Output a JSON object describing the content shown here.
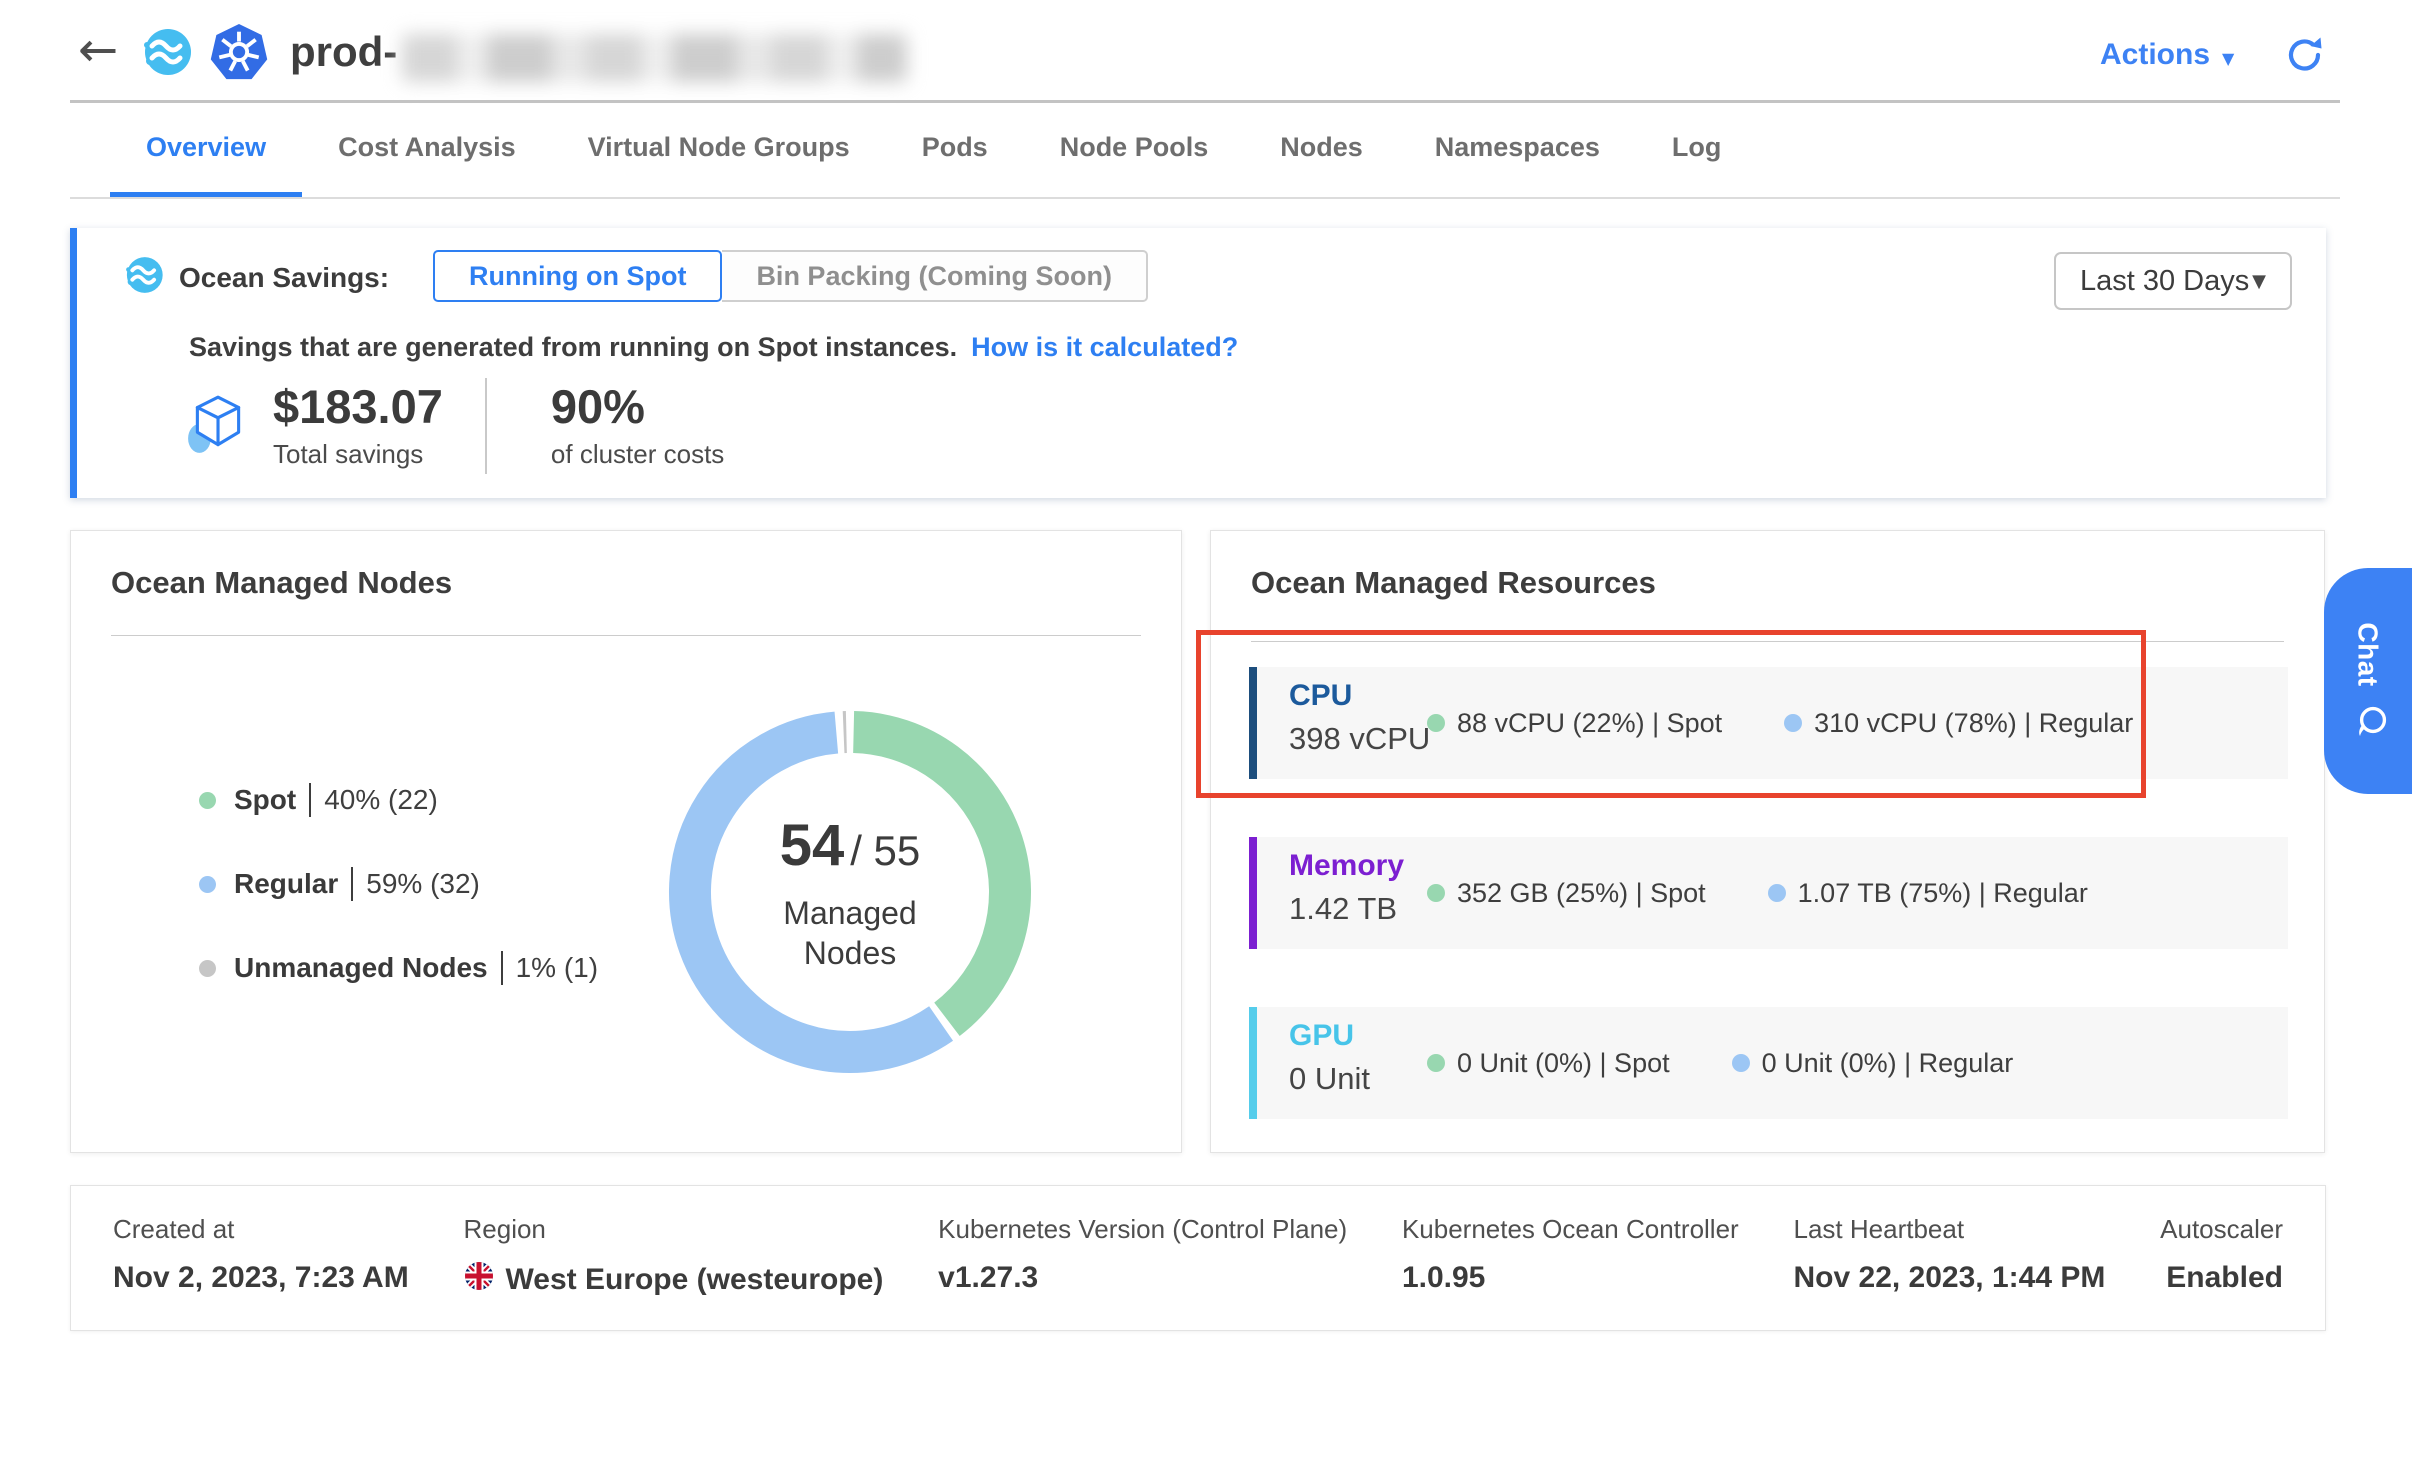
{
  "header": {
    "title_prefix": "prod-",
    "actions_label": "Actions"
  },
  "icons": {
    "back_arrow": "←",
    "caret_down": "▼"
  },
  "colors": {
    "accent_blue": "#2e7ff2",
    "spot_green": "#98d7b0",
    "regular_blue": "#9cc6f4",
    "unmanaged_grey": "#c6c6c6",
    "annotation_red": "#e8432d"
  },
  "tabs": [
    {
      "label": "Overview",
      "active": true
    },
    {
      "label": "Cost Analysis",
      "active": false
    },
    {
      "label": "Virtual Node Groups",
      "active": false
    },
    {
      "label": "Pods",
      "active": false
    },
    {
      "label": "Node Pools",
      "active": false
    },
    {
      "label": "Nodes",
      "active": false
    },
    {
      "label": "Namespaces",
      "active": false
    },
    {
      "label": "Log",
      "active": false
    }
  ],
  "savings_banner": {
    "label": "Ocean Savings:",
    "toggle_on": "Running on Spot",
    "toggle_off": "Bin Packing (Coming Soon)",
    "period_selector": "Last 30 Days",
    "description": "Savings that are generated from running on Spot instances.",
    "link": "How is it calculated?",
    "total_savings": "$183.07",
    "total_savings_label": "Total savings",
    "percent": "90%",
    "percent_label": "of cluster costs"
  },
  "managed_nodes": {
    "title": "Ocean Managed Nodes",
    "legend": [
      {
        "label": "Spot",
        "value": "40% (22)",
        "color": "#98d7b0"
      },
      {
        "label": "Regular",
        "value": "59% (32)",
        "color": "#9cc6f4"
      },
      {
        "label": "Unmanaged Nodes",
        "value": "1% (1)",
        "color": "#c6c6c6"
      }
    ],
    "center_value": "54",
    "center_total": "/ 55",
    "center_label": "Managed Nodes"
  },
  "chart_data": {
    "type": "pie",
    "title": "Ocean Managed Nodes",
    "categories": [
      "Spot",
      "Regular",
      "Unmanaged Nodes"
    ],
    "values": [
      40,
      59,
      1
    ],
    "counts": [
      22,
      32,
      1
    ],
    "total_nodes": 55,
    "managed_nodes": 54,
    "colors": [
      "#98d7b0",
      "#9cc6f4",
      "#c6c6c6"
    ],
    "donut": true,
    "legend_position": "left"
  },
  "managed_resources": {
    "title": "Ocean Managed Resources",
    "dot_colors": {
      "spot": "#98d7b0",
      "regular": "#9cc6f4"
    },
    "rows": [
      {
        "name": "CPU",
        "value": "398 vCPU",
        "accent": "#1d4e7d",
        "name_color": "#1c5a9c",
        "spot": "88 vCPU  (22%)  | Spot",
        "regular": "310 vCPU  (78%)  | Regular",
        "highlighted": true
      },
      {
        "name": "Memory",
        "value": "1.42 TB",
        "accent": "#7c1fd1",
        "name_color": "#7c1fd1",
        "spot": "352 GB  (25%)  | Spot",
        "regular": "1.07 TB  (75%)  | Regular",
        "highlighted": false
      },
      {
        "name": "GPU",
        "value": "0 Unit",
        "accent": "#55cdeb",
        "name_color": "#47c4e9",
        "spot": "0 Unit  (0%)  | Spot",
        "regular": "0 Unit  (0%)  | Regular",
        "highlighted": false
      }
    ]
  },
  "footer": {
    "columns": [
      {
        "label": "Created at",
        "value": "Nov 2, 2023, 7:23 AM"
      },
      {
        "label": "Region",
        "value": "West Europe (westeurope)"
      },
      {
        "label": "Kubernetes Version (Control Plane)",
        "value": "v1.27.3"
      },
      {
        "label": "Kubernetes Ocean Controller",
        "value": "1.0.95"
      },
      {
        "label": "Last Heartbeat",
        "value": "Nov 22, 2023, 1:44 PM"
      },
      {
        "label": "Autoscaler",
        "value": "Enabled"
      }
    ]
  },
  "chat": {
    "label": "Chat"
  }
}
